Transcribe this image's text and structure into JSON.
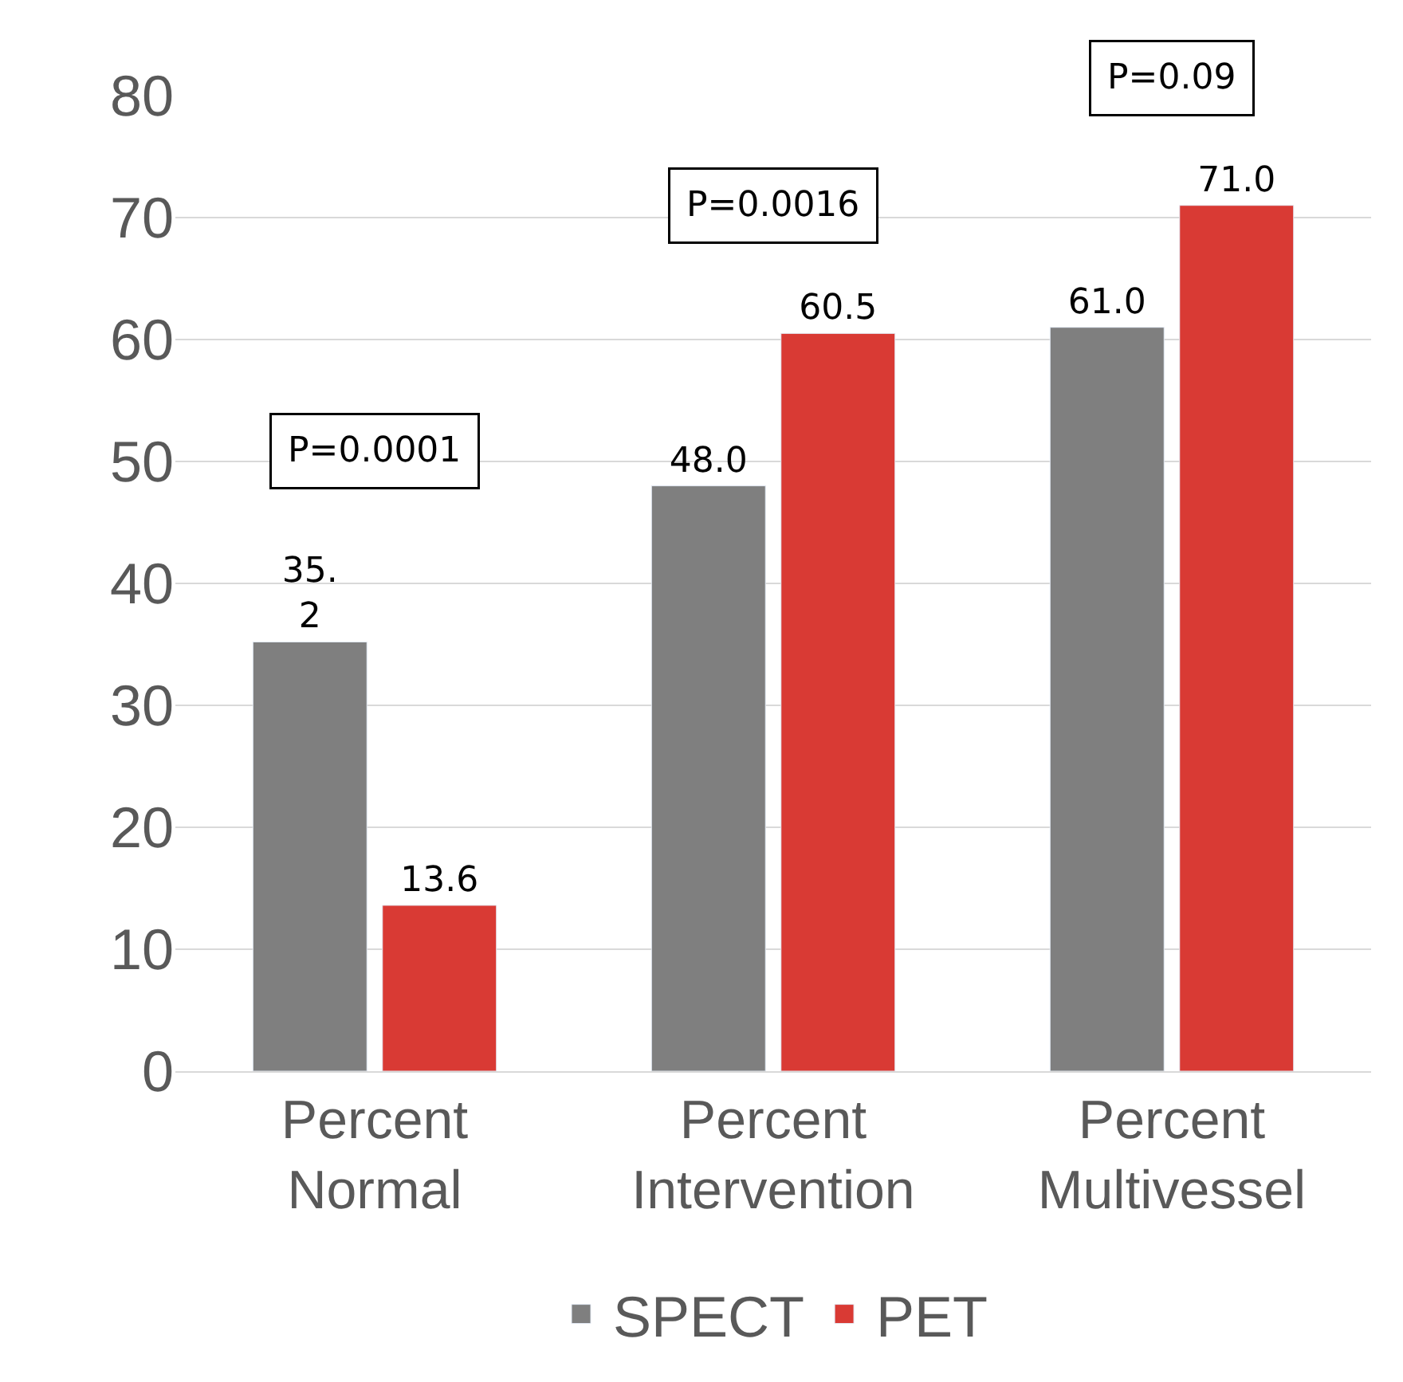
{
  "chart_data": {
    "type": "bar",
    "categories": [
      "Percent\nNormal",
      "Percent\nIntervention",
      "Percent\nMultivessel"
    ],
    "series": [
      {
        "name": "SPECT",
        "color": "#7f7f7f",
        "values": [
          35.2,
          48.0,
          61.0
        ],
        "value_labels": [
          "35.\n2",
          "48.0",
          "61.0"
        ]
      },
      {
        "name": "PET",
        "color": "#d93a34",
        "values": [
          13.6,
          60.5,
          71.0
        ],
        "value_labels": [
          "13.6",
          "60.5",
          "71.0"
        ]
      }
    ],
    "annotations": [
      "P=0.0001",
      "P=0.0016",
      "P=0.09"
    ],
    "ylim": [
      0,
      80
    ],
    "yticks": [
      0,
      10,
      20,
      30,
      40,
      50,
      60,
      70,
      80
    ],
    "grid": "y",
    "legend": "bottom"
  }
}
